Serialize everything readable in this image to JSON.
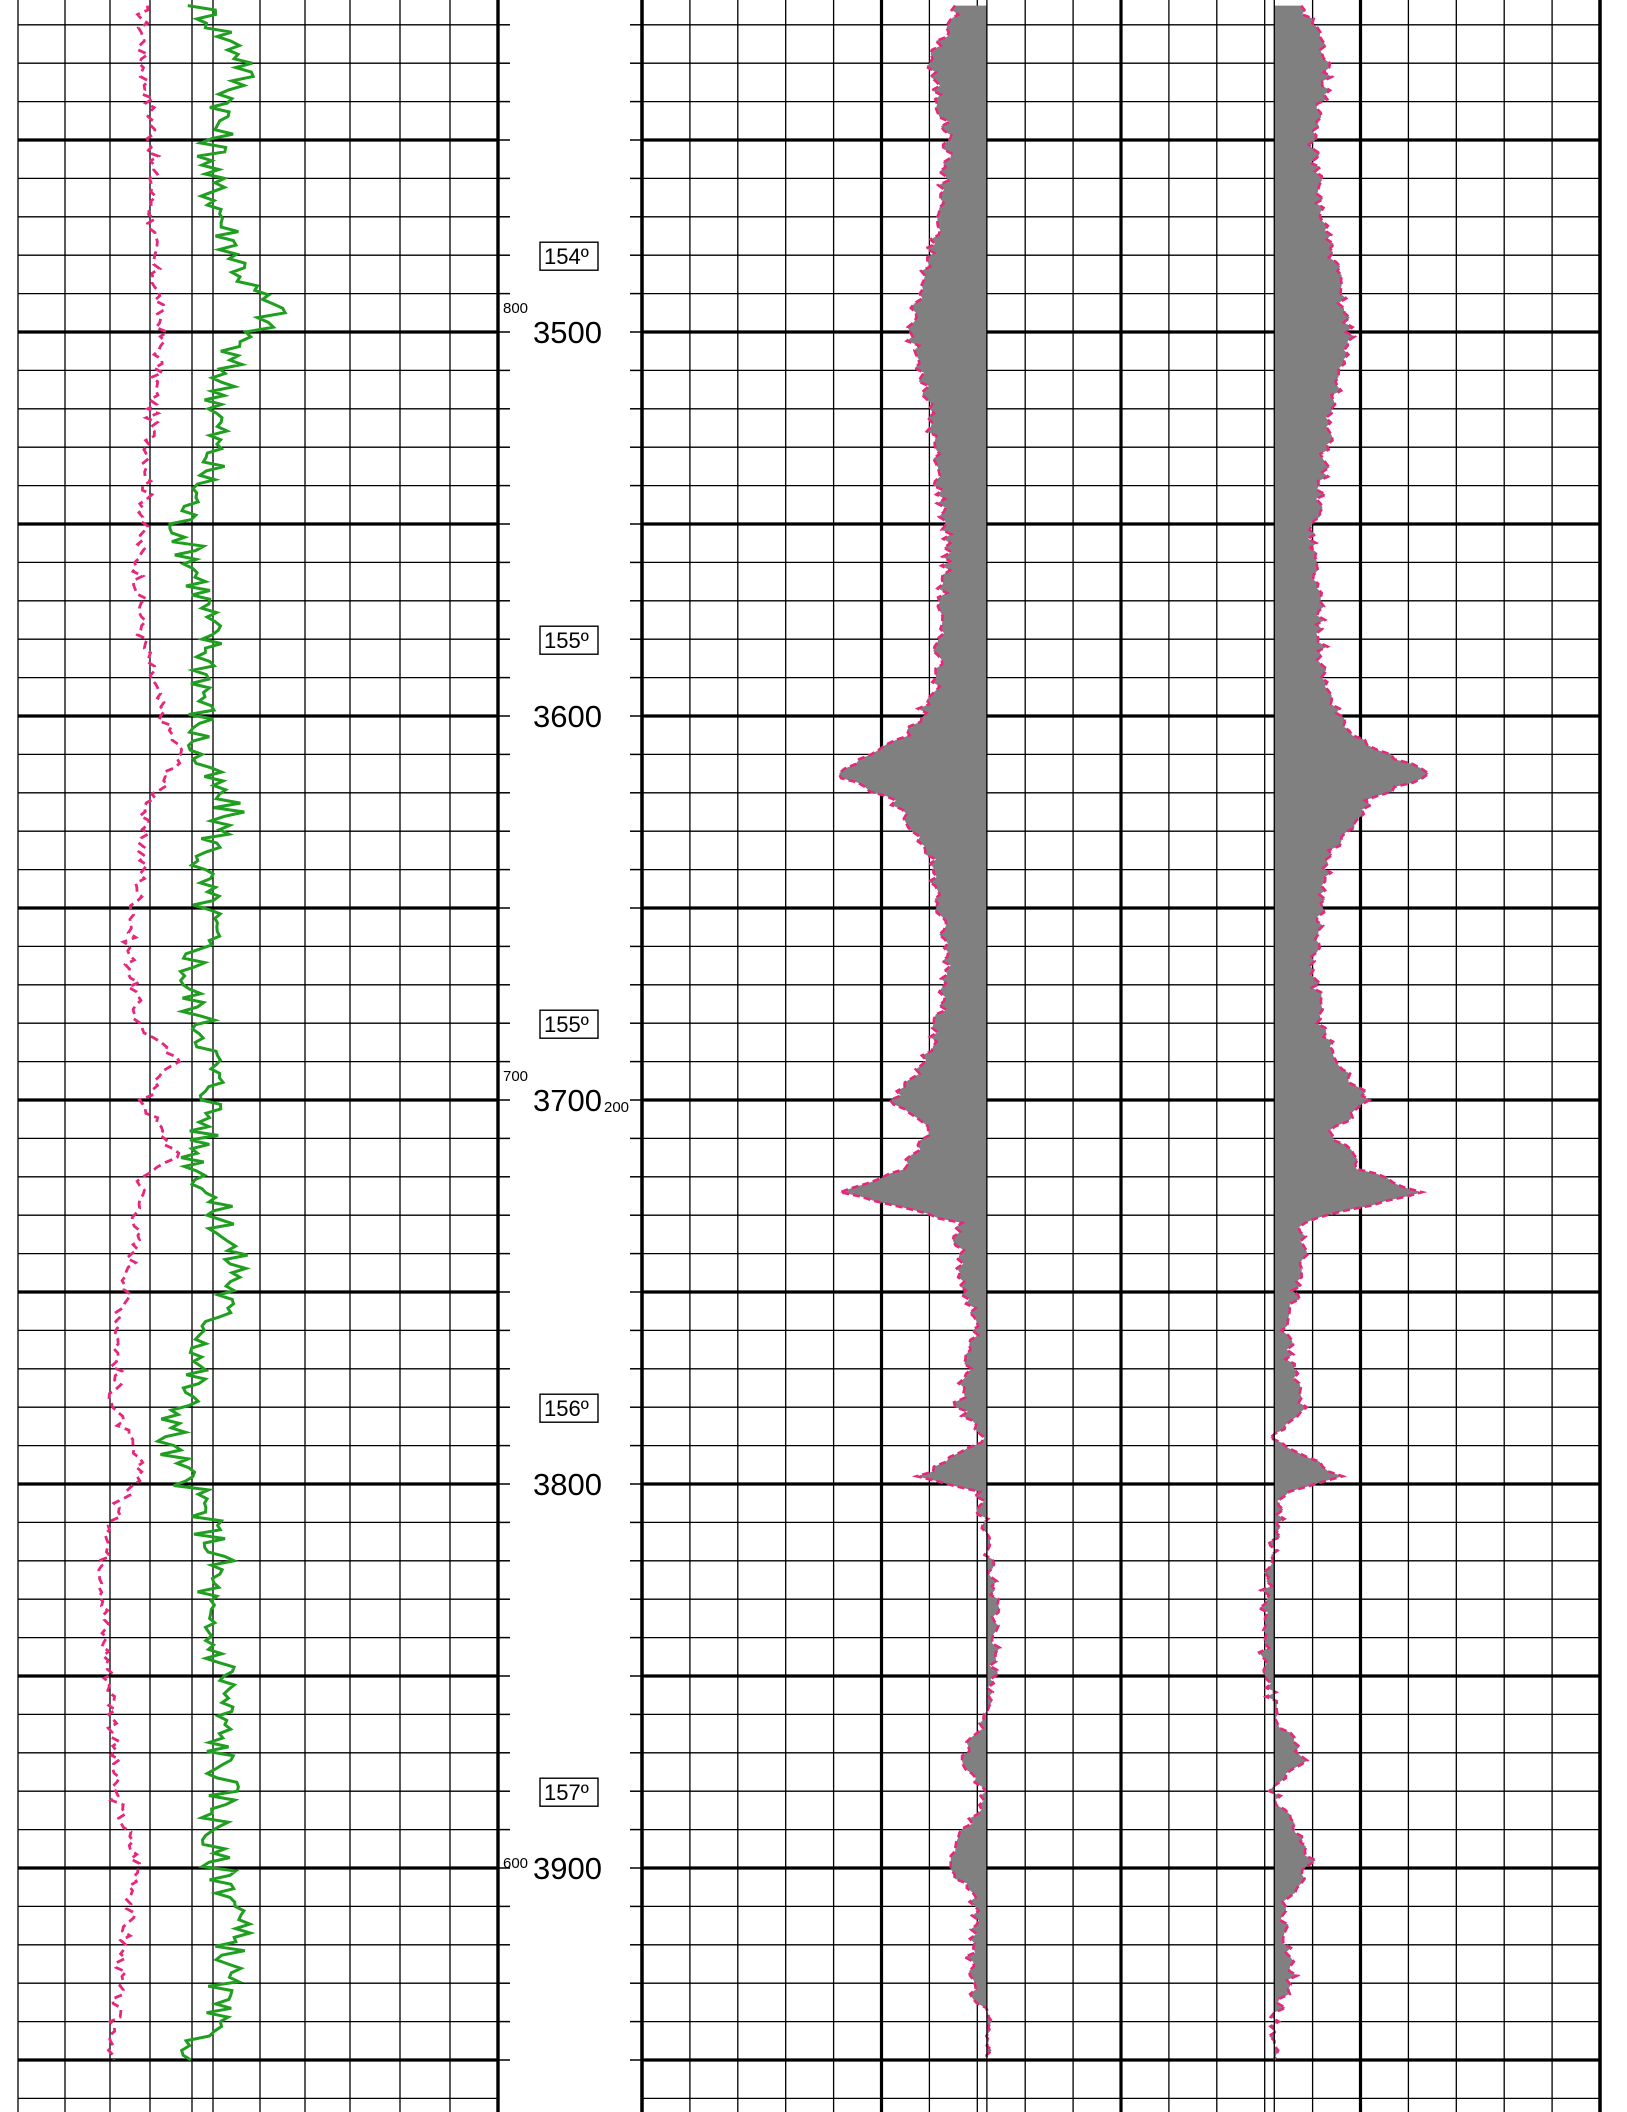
{
  "chart_data": {
    "type": "line",
    "title": "",
    "depth_axis": {
      "labels": [
        "3500",
        "3600",
        "3700",
        "3800",
        "3900"
      ],
      "range": [
        3415,
        3950
      ],
      "major_step": 50,
      "minor_step": 10
    },
    "temperature_markers": [
      {
        "depth": 3480,
        "label": "154º"
      },
      {
        "depth": 3580,
        "label": "155º"
      },
      {
        "depth": 3680,
        "label": "155º"
      },
      {
        "depth": 3780,
        "label": "156º"
      },
      {
        "depth": 3880,
        "label": "157º"
      }
    ],
    "scale_annotations": [
      {
        "depth": 3495,
        "label": "800"
      },
      {
        "depth": 3695,
        "label": "700"
      },
      {
        "depth": 3900,
        "label": "600"
      },
      {
        "depth": 3700,
        "label": "200"
      }
    ],
    "colors": {
      "curve_dashed": "#e8267e",
      "curve_solid": "#1f9e1f",
      "fill": "#808080",
      "grid": "#000000"
    },
    "left_track": {
      "series": [
        {
          "style": "dashed",
          "points": [
            [
              3415,
              0.26
            ],
            [
              3430,
              0.26
            ],
            [
              3445,
              0.28
            ],
            [
              3460,
              0.28
            ],
            [
              3480,
              0.28
            ],
            [
              3500,
              0.3
            ],
            [
              3520,
              0.28
            ],
            [
              3540,
              0.27
            ],
            [
              3560,
              0.25
            ],
            [
              3580,
              0.26
            ],
            [
              3600,
              0.3
            ],
            [
              3610,
              0.34
            ],
            [
              3618,
              0.3
            ],
            [
              3626,
              0.26
            ],
            [
              3640,
              0.26
            ],
            [
              3660,
              0.23
            ],
            [
              3680,
              0.25
            ],
            [
              3690,
              0.33
            ],
            [
              3700,
              0.26
            ],
            [
              3715,
              0.33
            ],
            [
              3720,
              0.26
            ],
            [
              3740,
              0.24
            ],
            [
              3760,
              0.21
            ],
            [
              3780,
              0.2
            ],
            [
              3798,
              0.26
            ],
            [
              3805,
              0.21
            ],
            [
              3820,
              0.18
            ],
            [
              3840,
              0.18
            ],
            [
              3860,
              0.2
            ],
            [
              3880,
              0.2
            ],
            [
              3900,
              0.25
            ],
            [
              3920,
              0.22
            ],
            [
              3940,
              0.2
            ],
            [
              3950,
              0.2
            ]
          ]
        },
        {
          "style": "solid",
          "points": [
            [
              3415,
              0.38
            ],
            [
              3430,
              0.48
            ],
            [
              3445,
              0.42
            ],
            [
              3460,
              0.4
            ],
            [
              3475,
              0.44
            ],
            [
              3488,
              0.48
            ],
            [
              3495,
              0.54
            ],
            [
              3505,
              0.44
            ],
            [
              3520,
              0.42
            ],
            [
              3535,
              0.4
            ],
            [
              3550,
              0.34
            ],
            [
              3565,
              0.38
            ],
            [
              3580,
              0.4
            ],
            [
              3595,
              0.39
            ],
            [
              3610,
              0.37
            ],
            [
              3625,
              0.44
            ],
            [
              3640,
              0.38
            ],
            [
              3655,
              0.4
            ],
            [
              3670,
              0.35
            ],
            [
              3685,
              0.4
            ],
            [
              3700,
              0.41
            ],
            [
              3715,
              0.37
            ],
            [
              3730,
              0.42
            ],
            [
              3745,
              0.46
            ],
            [
              3760,
              0.4
            ],
            [
              3775,
              0.36
            ],
            [
              3790,
              0.31
            ],
            [
              3805,
              0.38
            ],
            [
              3820,
              0.42
            ],
            [
              3835,
              0.38
            ],
            [
              3850,
              0.44
            ],
            [
              3865,
              0.42
            ],
            [
              3880,
              0.43
            ],
            [
              3895,
              0.4
            ],
            [
              3910,
              0.46
            ],
            [
              3925,
              0.44
            ],
            [
              3940,
              0.4
            ],
            [
              3950,
              0.36
            ]
          ]
        }
      ]
    },
    "right_track": {
      "series": [
        {
          "name": "",
          "style": "filled-left",
          "points": [
            [
              3415,
              0.33
            ],
            [
              3430,
              0.3
            ],
            [
              3450,
              0.32
            ],
            [
              3470,
              0.31
            ],
            [
              3490,
              0.29
            ],
            [
              3500,
              0.28
            ],
            [
              3520,
              0.3
            ],
            [
              3540,
              0.31
            ],
            [
              3555,
              0.32
            ],
            [
              3575,
              0.31
            ],
            [
              3590,
              0.31
            ],
            [
              3605,
              0.28
            ],
            [
              3615,
              0.2
            ],
            [
              3622,
              0.26
            ],
            [
              3635,
              0.3
            ],
            [
              3650,
              0.31
            ],
            [
              3665,
              0.32
            ],
            [
              3680,
              0.31
            ],
            [
              3692,
              0.29
            ],
            [
              3700,
              0.26
            ],
            [
              3708,
              0.3
            ],
            [
              3718,
              0.27
            ],
            [
              3724,
              0.21
            ],
            [
              3732,
              0.33
            ],
            [
              3745,
              0.33
            ],
            [
              3760,
              0.35
            ],
            [
              3770,
              0.34
            ],
            [
              3780,
              0.33
            ],
            [
              3788,
              0.36
            ],
            [
              3798,
              0.29
            ],
            [
              3802,
              0.35
            ],
            [
              3815,
              0.36
            ],
            [
              3830,
              0.37
            ],
            [
              3845,
              0.37
            ],
            [
              3860,
              0.36
            ],
            [
              3872,
              0.33
            ],
            [
              3880,
              0.36
            ],
            [
              3898,
              0.32
            ],
            [
              3910,
              0.35
            ],
            [
              3928,
              0.34
            ],
            [
              3940,
              0.36
            ],
            [
              3950,
              0.36
            ]
          ]
        },
        {
          "name": "",
          "style": "filled-right",
          "points": [
            [
              3415,
              0.69
            ],
            [
              3430,
              0.72
            ],
            [
              3450,
              0.7
            ],
            [
              3470,
              0.71
            ],
            [
              3490,
              0.73
            ],
            [
              3500,
              0.74
            ],
            [
              3520,
              0.72
            ],
            [
              3540,
              0.71
            ],
            [
              3555,
              0.7
            ],
            [
              3575,
              0.71
            ],
            [
              3590,
              0.71
            ],
            [
              3605,
              0.74
            ],
            [
              3615,
              0.82
            ],
            [
              3622,
              0.76
            ],
            [
              3635,
              0.72
            ],
            [
              3650,
              0.71
            ],
            [
              3665,
              0.7
            ],
            [
              3680,
              0.71
            ],
            [
              3692,
              0.73
            ],
            [
              3700,
              0.76
            ],
            [
              3708,
              0.72
            ],
            [
              3718,
              0.75
            ],
            [
              3724,
              0.81
            ],
            [
              3732,
              0.69
            ],
            [
              3745,
              0.69
            ],
            [
              3760,
              0.67
            ],
            [
              3770,
              0.68
            ],
            [
              3780,
              0.69
            ],
            [
              3788,
              0.66
            ],
            [
              3798,
              0.73
            ],
            [
              3802,
              0.67
            ],
            [
              3815,
              0.66
            ],
            [
              3830,
              0.65
            ],
            [
              3845,
              0.65
            ],
            [
              3860,
              0.66
            ],
            [
              3872,
              0.69
            ],
            [
              3880,
              0.66
            ],
            [
              3898,
              0.7
            ],
            [
              3910,
              0.67
            ],
            [
              3928,
              0.68
            ],
            [
              3940,
              0.66
            ],
            [
              3950,
              0.66
            ]
          ]
        }
      ]
    }
  }
}
